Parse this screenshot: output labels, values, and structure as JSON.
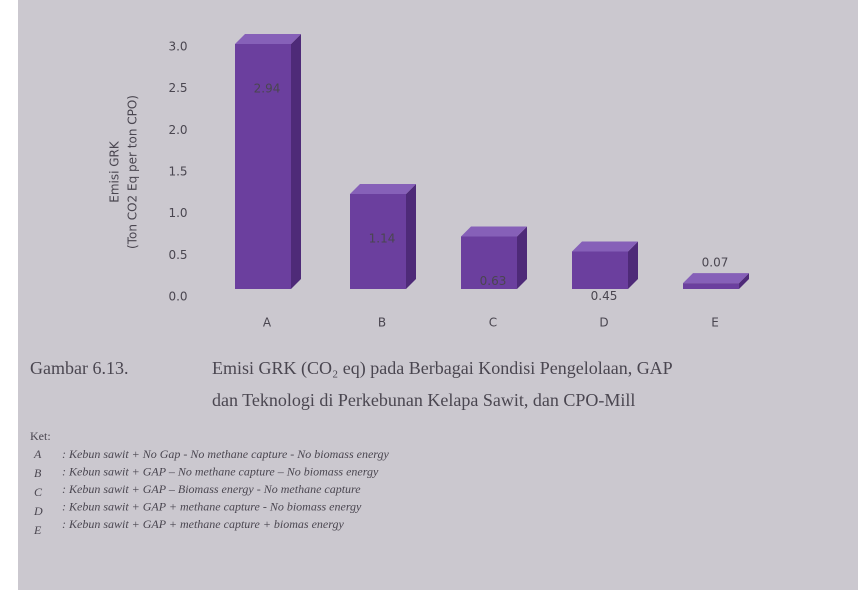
{
  "chart_data": {
    "type": "bar",
    "ylabel": [
      "Emisi GRK",
      "(Ton CO2 Eq per ton CPO)"
    ],
    "categories": [
      "A",
      "B",
      "C",
      "D",
      "E"
    ],
    "values": [
      2.94,
      1.14,
      0.63,
      0.45,
      0.07
    ],
    "color": "#6b3f9e",
    "ylim": [
      0,
      3
    ],
    "yticks": [
      {
        "value": 0,
        "label": "0.0"
      },
      {
        "value": 0.5,
        "label": "0.5"
      },
      {
        "value": 1,
        "label": "1.0"
      },
      {
        "value": 1.5,
        "label": "1.5"
      },
      {
        "value": 2,
        "label": "2.0"
      },
      {
        "value": 2.5,
        "label": "2.5"
      },
      {
        "value": 3,
        "label": "3.0"
      }
    ],
    "grid": false
  },
  "caption": {
    "number": "Gambar 6.13.",
    "lines": [
      "Emisi GRK (CO₂ eq) pada Berbagai Kondisi Pengelolaan, GAP",
      "dan Teknologi di Perkebunan Kelapa Sawit, dan CPO-Mill"
    ]
  },
  "notes": {
    "heading": "Ket:",
    "items": [
      {
        "key": "A",
        "text": ": Kebun sawit + No Gap - No methane capture - No biomass energy"
      },
      {
        "key": "B",
        "text": ": Kebun sawit + GAP – No methane capture – No biomass energy"
      },
      {
        "key": "C",
        "text": ": Kebun sawit + GAP – Biomass energy - No methane capture"
      },
      {
        "key": "D",
        "text": ": Kebun sawit + GAP + methane capture - No biomass energy"
      },
      {
        "key": "E",
        "text": ": Kebun sawit + GAP + methane capture + biomas energy"
      }
    ]
  }
}
